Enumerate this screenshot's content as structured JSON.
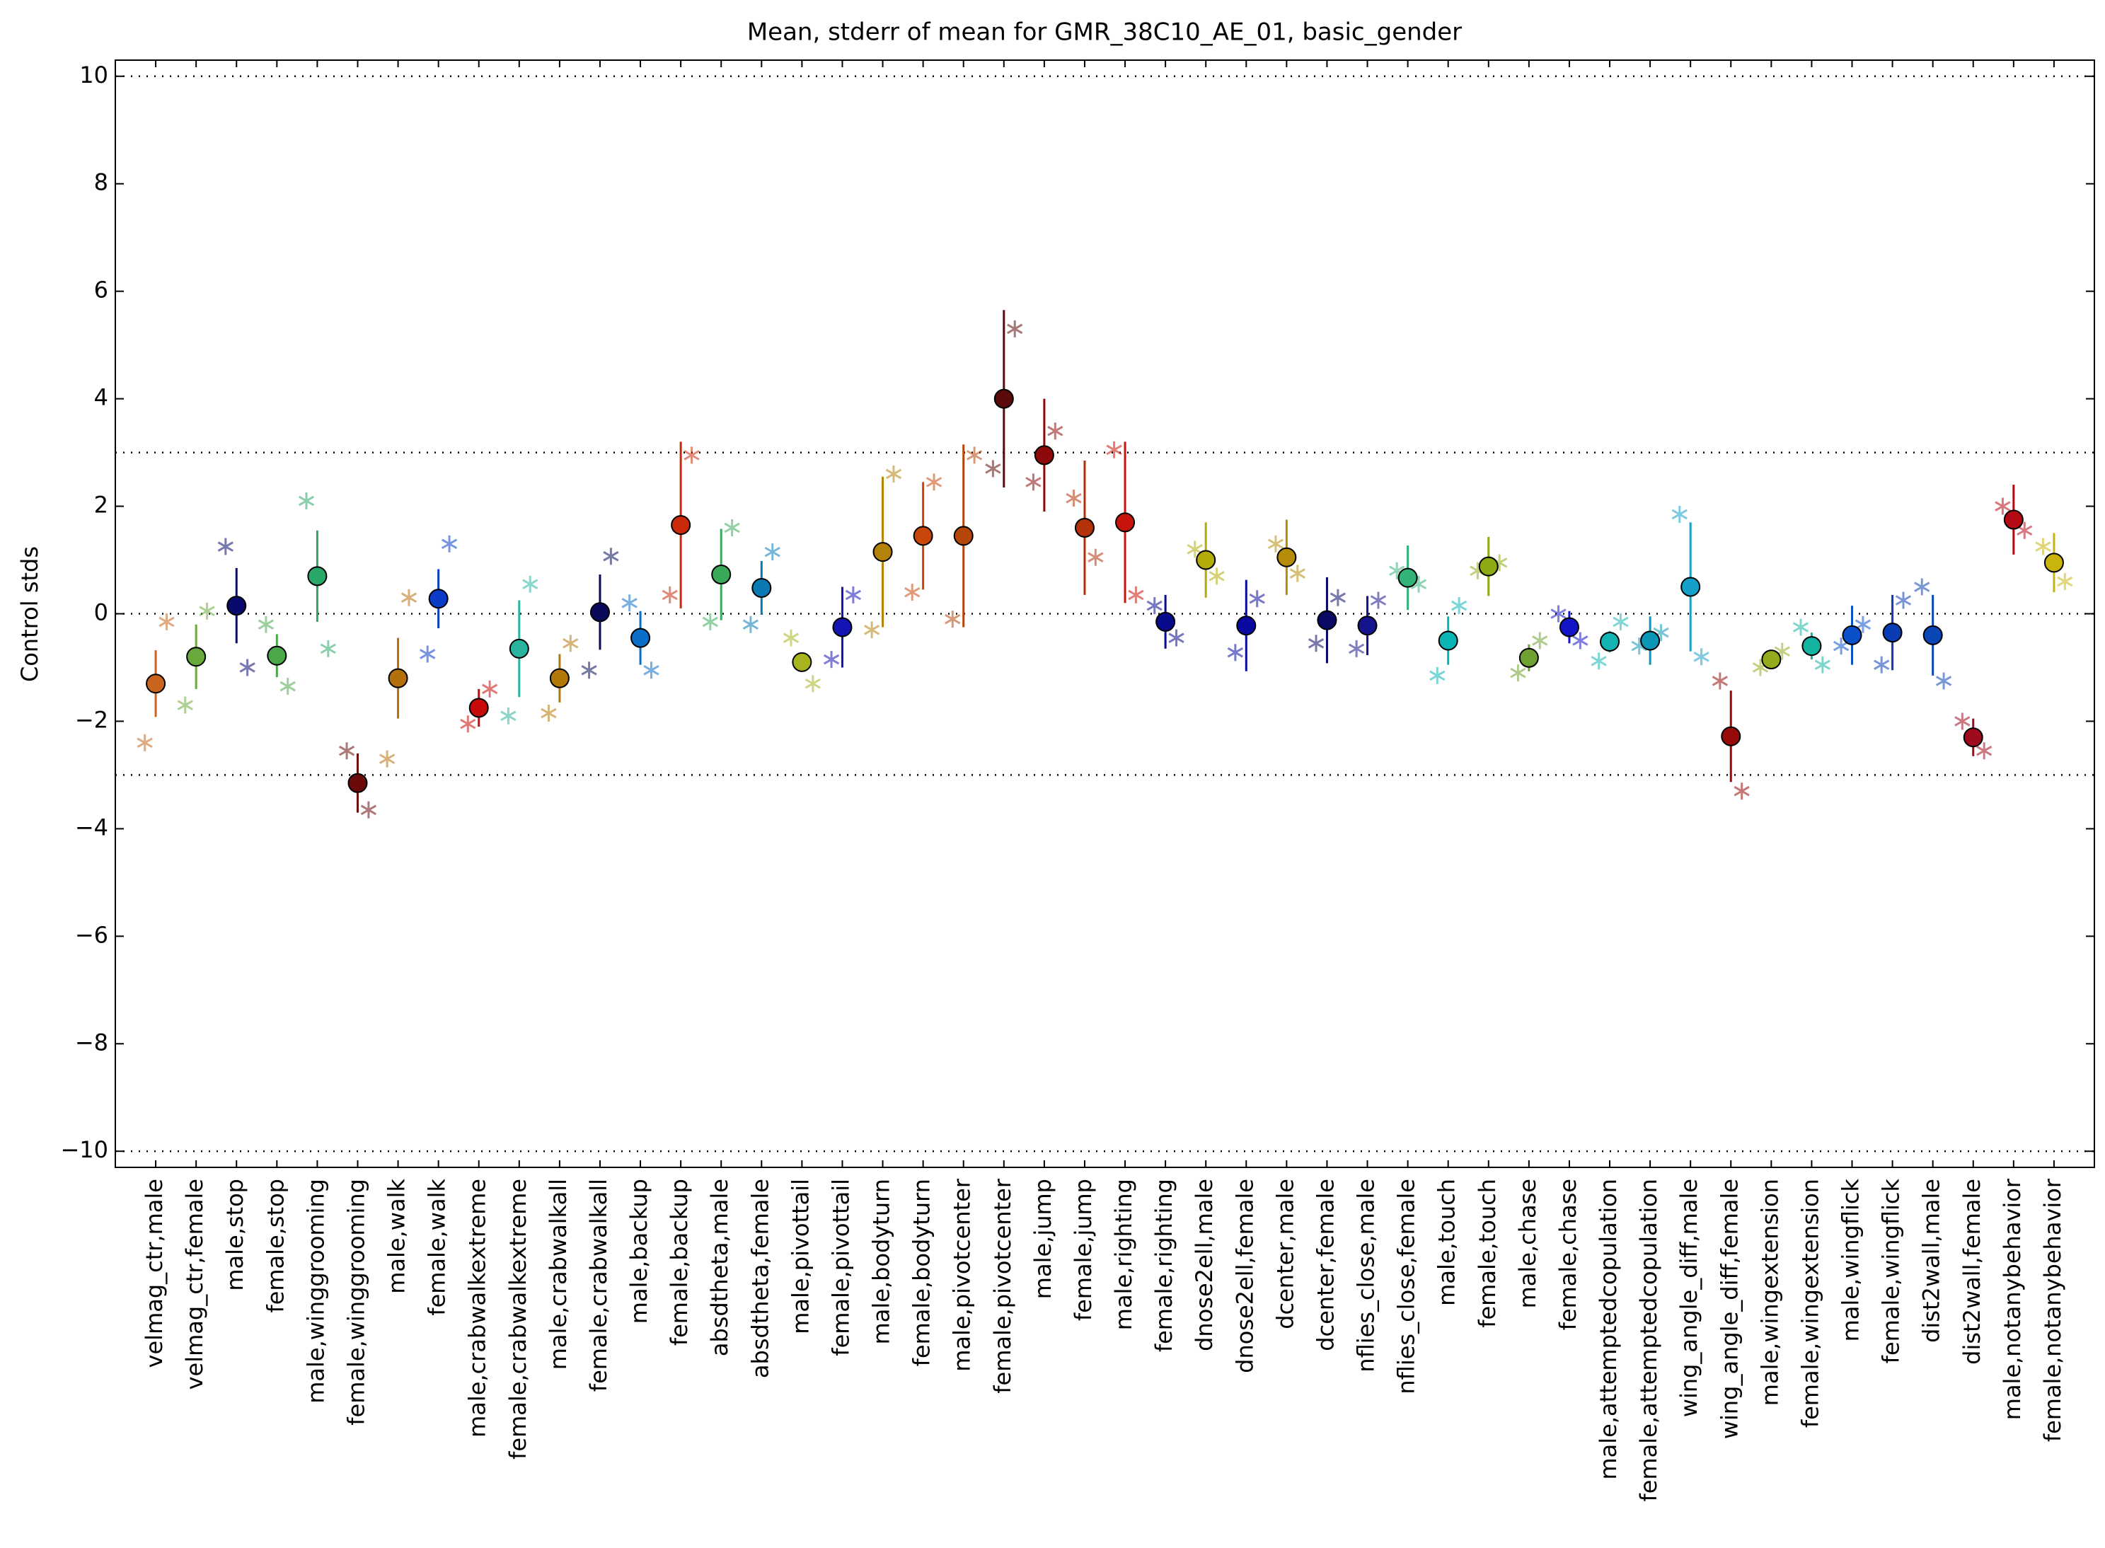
{
  "chart_data": {
    "type": "errorbar",
    "title": "Mean, stderr of mean for GMR_38C10_AE_01, basic_gender",
    "ylabel": "Control stds",
    "categories": [
      "velmag_ctr,male",
      "velmag_ctr,female",
      "male,stop",
      "female,stop",
      "male,winggrooming",
      "female,winggrooming",
      "male,walk",
      "female,walk",
      "male,crabwalkextreme",
      "female,crabwalkextreme",
      "male,crabwalkall",
      "female,crabwalkall",
      "male,backup",
      "female,backup",
      "absdtheta,male",
      "absdtheta,female",
      "male,pivottail",
      "female,pivottail",
      "male,bodyturn",
      "female,bodyturn",
      "male,pivotcenter",
      "female,pivotcenter",
      "male,jump",
      "female,jump",
      "male,righting",
      "female,righting",
      "dnose2ell,male",
      "dnose2ell,female",
      "dcenter,male",
      "dcenter,female",
      "nflies_close,male",
      "nflies_close,female",
      "male,touch",
      "female,touch",
      "male,chase",
      "female,chase",
      "male,attemptedcopulation",
      "female,attemptedcopulation",
      "wing_angle_diff,male",
      "wing_angle_diff,female",
      "male,wingextension",
      "female,wingextension",
      "male,wingflick",
      "female,wingflick",
      "dist2wall,male",
      "dist2wall,female",
      "male,notanybehavior",
      "female,notanybehavior"
    ],
    "values": [
      -1.3,
      -0.8,
      0.15,
      -0.78,
      0.7,
      -3.15,
      -1.2,
      0.28,
      -1.75,
      -0.65,
      -1.2,
      0.03,
      -0.45,
      1.65,
      0.73,
      0.48,
      -0.9,
      -0.25,
      1.15,
      1.45,
      1.45,
      4.0,
      2.95,
      1.6,
      1.7,
      -0.15,
      1.0,
      -0.22,
      1.05,
      -0.12,
      -0.22,
      0.67,
      -0.5,
      0.88,
      -0.82,
      -0.25,
      -0.52,
      -0.5,
      0.5,
      -2.28,
      -0.85,
      -0.6,
      -0.4,
      -0.35,
      -0.4,
      -2.3,
      1.75,
      0.95
    ],
    "errors": [
      0.62,
      0.6,
      0.7,
      0.4,
      0.85,
      0.55,
      0.75,
      0.55,
      0.35,
      0.9,
      0.45,
      0.7,
      0.5,
      1.55,
      0.85,
      0.5,
      0.15,
      0.75,
      1.4,
      1.0,
      1.7,
      1.65,
      1.05,
      1.25,
      1.5,
      0.5,
      0.7,
      0.85,
      0.7,
      0.8,
      0.55,
      0.6,
      0.45,
      0.55,
      0.25,
      0.3,
      0.2,
      0.45,
      1.2,
      0.85,
      0.15,
      0.25,
      0.55,
      0.7,
      0.75,
      0.35,
      0.65,
      0.55
    ],
    "stars_left": [
      -2.4,
      -1.7,
      1.25,
      -0.2,
      2.1,
      -2.55,
      -2.7,
      -0.75,
      -2.05,
      -1.9,
      -1.85,
      -1.05,
      0.2,
      0.35,
      -0.15,
      -0.2,
      -0.45,
      -0.85,
      -0.3,
      0.4,
      -0.1,
      2.7,
      2.45,
      2.15,
      3.05,
      0.15,
      1.2,
      -0.72,
      1.3,
      -0.55,
      -0.65,
      0.8,
      -1.15,
      0.8,
      -1.1,
      0.0,
      -0.88,
      -0.6,
      1.85,
      -1.25,
      -1.0,
      -0.25,
      -0.6,
      -0.95,
      0.5,
      -2.0,
      2.0,
      1.25
    ],
    "stars_right": [
      -0.15,
      0.05,
      -1.0,
      -1.35,
      -0.65,
      -3.65,
      0.3,
      1.3,
      -1.4,
      0.55,
      -0.55,
      1.07,
      -1.05,
      2.95,
      1.6,
      1.15,
      -1.3,
      0.35,
      2.6,
      2.45,
      2.95,
      5.3,
      3.4,
      1.05,
      0.35,
      -0.45,
      0.7,
      0.28,
      0.75,
      0.3,
      0.25,
      0.55,
      0.15,
      0.95,
      -0.5,
      -0.5,
      -0.15,
      -0.35,
      -0.8,
      -3.3,
      -0.7,
      -0.95,
      -0.2,
      0.25,
      -1.25,
      -2.55,
      1.55,
      0.6
    ],
    "colors": [
      "#c8641e",
      "#6aaa3c",
      "#0a0a6e",
      "#4aa84a",
      "#2aa86a",
      "#6a0a0a",
      "#b4700a",
      "#0a3cc8",
      "#c80a0a",
      "#2ab4a0",
      "#b4780a",
      "#0a0a5a",
      "#0a6ec8",
      "#c82a0a",
      "#3aaa5a",
      "#0a7ab4",
      "#a8b41e",
      "#1414b4",
      "#b4820a",
      "#c8460a",
      "#b4460a",
      "#5a0a0a",
      "#8c0a0a",
      "#b4320a",
      "#c8140a",
      "#0a0a8c",
      "#b4aa0a",
      "#0a0aa0",
      "#b48c0a",
      "#0a0a64",
      "#14148c",
      "#32b478",
      "#0ab4b4",
      "#8caa14",
      "#6ea032",
      "#1414c8",
      "#14b4b4",
      "#0a96b4",
      "#14a0c8",
      "#960a0a",
      "#96aa1e",
      "#14b4a0",
      "#0a50c8",
      "#0a3cb4",
      "#0a46b4",
      "#a00a1e",
      "#b40a14",
      "#c8b40a"
    ],
    "xlim": [
      0,
      49
    ],
    "ylim": [
      -10.3,
      10.3
    ],
    "yticks": [
      {
        "value": -10,
        "label": "−10"
      },
      {
        "value": -8,
        "label": "−8"
      },
      {
        "value": -6,
        "label": "−6"
      },
      {
        "value": -4,
        "label": "−4"
      },
      {
        "value": -2,
        "label": "−2"
      },
      0,
      2,
      4,
      6,
      8,
      10
    ],
    "reference_lines": [
      10,
      3,
      0,
      -3,
      -10
    ]
  }
}
